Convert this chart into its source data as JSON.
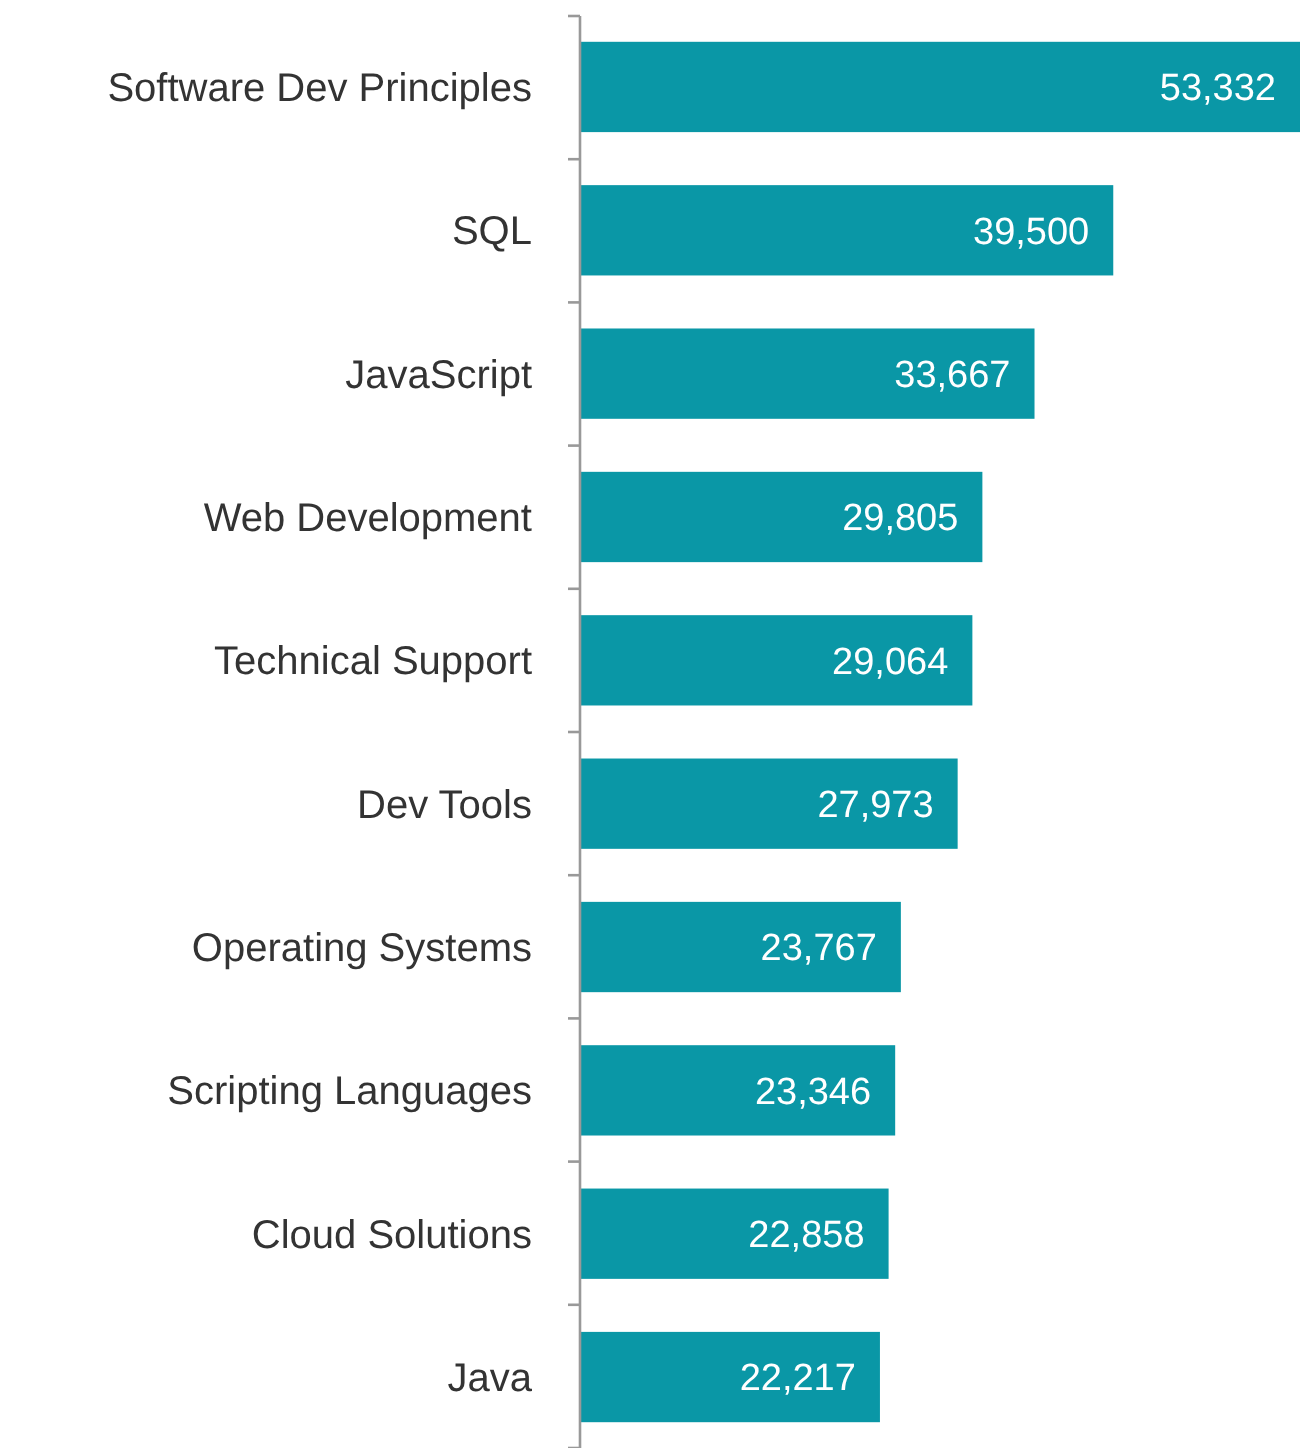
{
  "chart_data": {
    "type": "bar",
    "orientation": "horizontal",
    "categories": [
      "Software Dev Principles",
      "SQL",
      "JavaScript",
      "Web Development",
      "Technical Support",
      "Dev Tools",
      "Operating Systems",
      "Scripting Languages",
      "Cloud Solutions",
      "Java"
    ],
    "values": [
      53332,
      39500,
      33667,
      29805,
      29064,
      27973,
      23767,
      23346,
      22858,
      22217
    ],
    "value_labels": [
      "53,332",
      "39,500",
      "33,667",
      "29,805",
      "29,064",
      "27,973",
      "23,767",
      "23,346",
      "22,858",
      "22,217"
    ],
    "color": "#0a97a6"
  }
}
